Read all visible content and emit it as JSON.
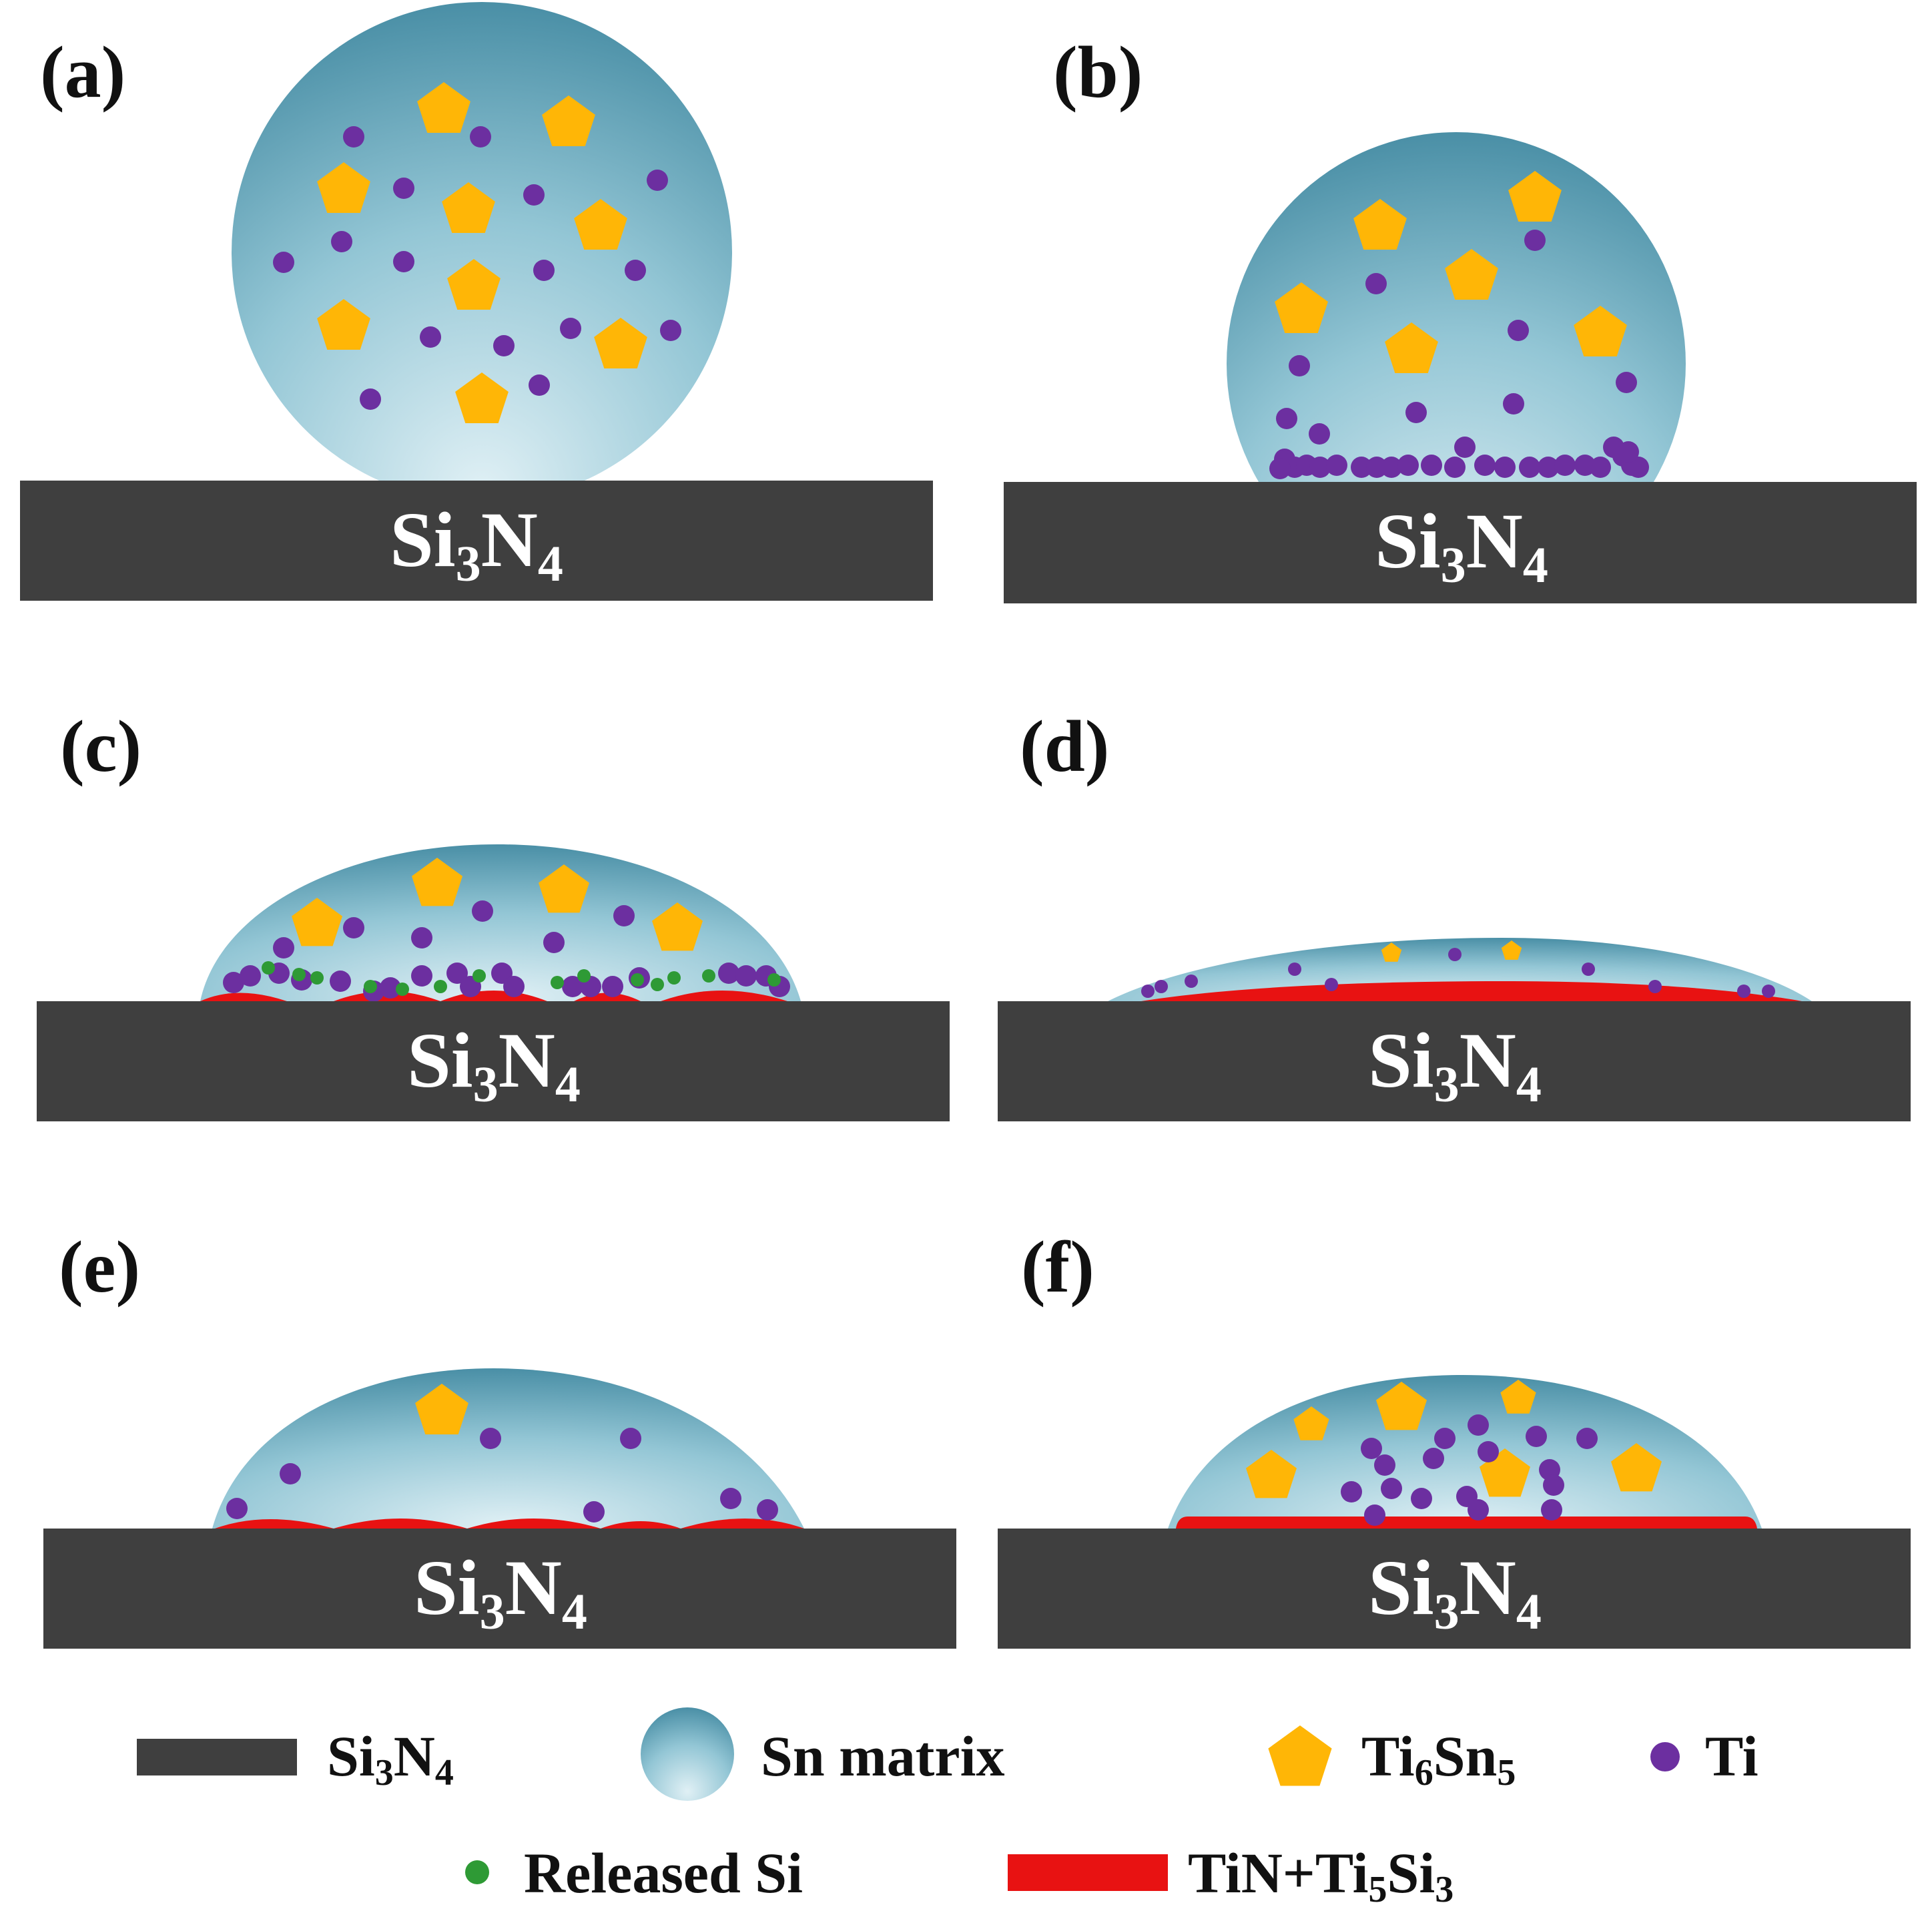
{
  "colors": {
    "substrate": "#3f3f3f",
    "matrix_dark": "#4a8fa6",
    "matrix_light": "#e0f0f5",
    "ti6sn5": "#ffb606",
    "ti": "#6c2fa0",
    "released_si": "#2e9a35",
    "reaction_layer": "#e81212"
  },
  "panels": [
    {
      "label": "(a)",
      "substrate": {
        "base": "Si",
        "sub1": "3",
        "mid": "N",
        "sub2": "4"
      }
    },
    {
      "label": "(b)",
      "substrate": {
        "base": "Si",
        "sub1": "3",
        "mid": "N",
        "sub2": "4"
      }
    },
    {
      "label": "(c)",
      "substrate": {
        "base": "Si",
        "sub1": "3",
        "mid": "N",
        "sub2": "4"
      }
    },
    {
      "label": "(d)",
      "substrate": {
        "base": "Si",
        "sub1": "3",
        "mid": "N",
        "sub2": "4"
      }
    },
    {
      "label": "(e)",
      "substrate": {
        "base": "Si",
        "sub1": "3",
        "mid": "N",
        "sub2": "4"
      }
    },
    {
      "label": "(f)",
      "substrate": {
        "base": "Si",
        "sub1": "3",
        "mid": "N",
        "sub2": "4"
      }
    }
  ],
  "legend": {
    "substrate": {
      "base": "Si",
      "sub1": "3",
      "mid": "N",
      "sub2": "4",
      "icon": "dark-bar"
    },
    "matrix": {
      "text": "Sn matrix",
      "icon": "gradient-sphere"
    },
    "ti6sn5": {
      "base": "Ti",
      "sub1": "6",
      "mid": "Sn",
      "sub2": "5",
      "icon": "yellow-pentagon"
    },
    "ti": {
      "text": "Ti",
      "icon": "purple-dot"
    },
    "released_si": {
      "text": "Released Si",
      "icon": "green-dot"
    },
    "reaction_layer": {
      "text1": "TiN+Ti",
      "sub1": "5",
      "text2": "Si",
      "sub2": "3",
      "icon": "red-bar"
    }
  }
}
